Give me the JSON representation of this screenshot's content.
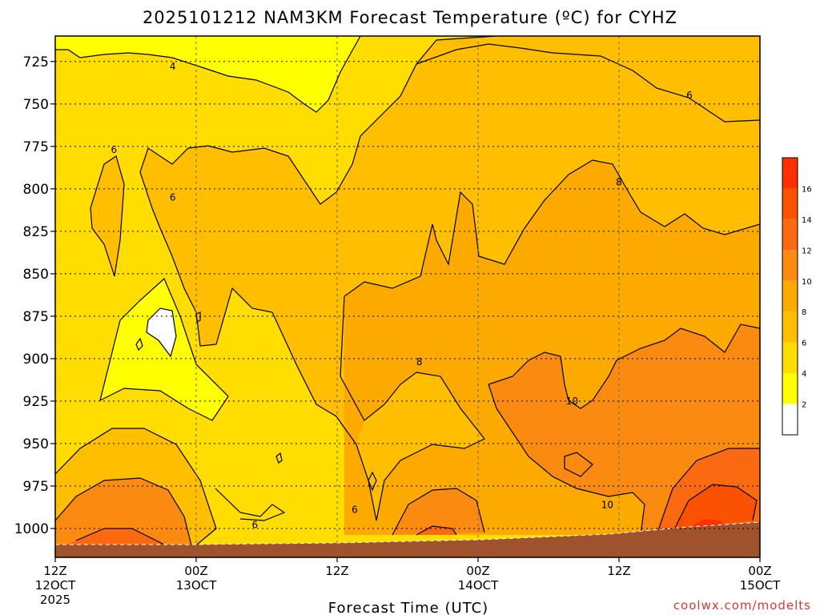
{
  "chart_data": {
    "type": "heatmap",
    "title": "2025101212 NAM3KM Forecast Temperature (ºC) for CYHZ",
    "xlabel": "Forecast Time (UTC)",
    "ylabel": "",
    "credit": "coolwx.com/modelts",
    "y_axis": {
      "unit": "hPa",
      "range": [
        1017,
        710
      ],
      "ticks": [
        725,
        750,
        775,
        800,
        825,
        850,
        875,
        900,
        925,
        950,
        975,
        1000
      ]
    },
    "x_axis": {
      "range_hours": [
        0,
        60
      ],
      "ticks": [
        {
          "hour": 0,
          "line1": "12Z",
          "line2": "12OCT",
          "line3": "2025"
        },
        {
          "hour": 12,
          "line1": "00Z",
          "line2": "13OCT",
          "line3": ""
        },
        {
          "hour": 24,
          "line1": "12Z",
          "line2": "",
          "line3": ""
        },
        {
          "hour": 36,
          "line1": "00Z",
          "line2": "14OCT",
          "line3": ""
        },
        {
          "hour": 48,
          "line1": "12Z",
          "line2": "",
          "line3": ""
        },
        {
          "hour": 60,
          "line1": "00Z",
          "line2": "15OCT",
          "line3": ""
        }
      ]
    },
    "grid": true,
    "colorbar": {
      "placement": "right",
      "levels": [
        {
          "from": 0,
          "to": 2,
          "color": "#ffffff",
          "label": "2"
        },
        {
          "from": 2,
          "to": 4,
          "color": "#ffff00",
          "label": "4"
        },
        {
          "from": 4,
          "to": 6,
          "color": "#ffdd00",
          "label": "6"
        },
        {
          "from": 6,
          "to": 8,
          "color": "#ffbf00",
          "label": "8"
        },
        {
          "from": 8,
          "to": 10,
          "color": "#fdaa00",
          "label": "10"
        },
        {
          "from": 10,
          "to": 12,
          "color": "#fb8a10",
          "label": "12"
        },
        {
          "from": 12,
          "to": 14,
          "color": "#fb6a10",
          "label": "14"
        },
        {
          "from": 14,
          "to": 16,
          "color": "#fa5200",
          "label": "16"
        },
        {
          "from": 16,
          "to": 18,
          "color": "#ff3000",
          "label": ""
        }
      ]
    },
    "ground_color": "#a0522d",
    "contour_labels": [
      {
        "text": "4",
        "hour": 10.0,
        "hpa": 728
      },
      {
        "text": "6",
        "hour": 5.0,
        "hpa": 777
      },
      {
        "text": "6",
        "hour": 10.0,
        "hpa": 805
      },
      {
        "text": "6",
        "hour": 17.0,
        "hpa": 998
      },
      {
        "text": "6",
        "hour": 25.5,
        "hpa": 989
      },
      {
        "text": "6",
        "hour": 54.0,
        "hpa": 745
      },
      {
        "text": "8",
        "hour": 31.0,
        "hpa": 902
      },
      {
        "text": "8",
        "hour": 48.0,
        "hpa": 796
      },
      {
        "text": "10",
        "hour": 44.0,
        "hpa": 925
      },
      {
        "text": "10",
        "hour": 47.0,
        "hpa": 986
      }
    ]
  }
}
